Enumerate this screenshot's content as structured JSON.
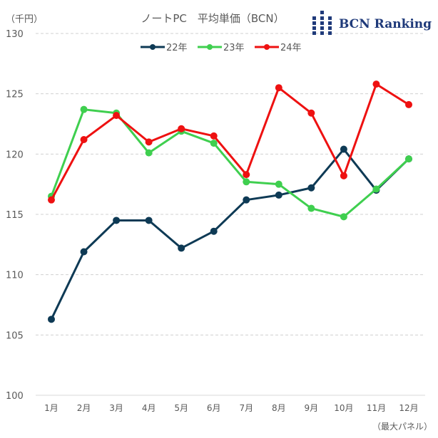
{
  "chart_data": {
    "type": "line",
    "title": "ノートPC　平均単価（BCN）",
    "ylabel": "（千円）",
    "note": "（最大パネル）",
    "ylim": [
      100,
      130
    ],
    "yticks": [
      100,
      105,
      110,
      115,
      120,
      125,
      130
    ],
    "grid": true,
    "legend_position": "top",
    "categories": [
      "1月",
      "2月",
      "3月",
      "4月",
      "5月",
      "6月",
      "7月",
      "8月",
      "9月",
      "10月",
      "11月",
      "12月"
    ],
    "series": [
      {
        "name": "22年",
        "color": "#0e3a55",
        "values": [
          106.3,
          111.9,
          114.5,
          114.5,
          112.2,
          113.6,
          116.2,
          116.6,
          117.2,
          120.4,
          117.0,
          119.6
        ]
      },
      {
        "name": "23年",
        "color": "#3fcf4f",
        "values": [
          116.5,
          123.7,
          123.4,
          120.1,
          121.9,
          120.9,
          117.7,
          117.5,
          115.5,
          114.8,
          117.1,
          119.6
        ]
      },
      {
        "name": "24年",
        "color": "#ee1111",
        "values": [
          116.2,
          121.2,
          123.2,
          121.0,
          122.1,
          121.5,
          118.3,
          125.5,
          123.4,
          118.2,
          125.8,
          124.1
        ]
      }
    ]
  },
  "logo": {
    "text": "BCN Ranking"
  }
}
